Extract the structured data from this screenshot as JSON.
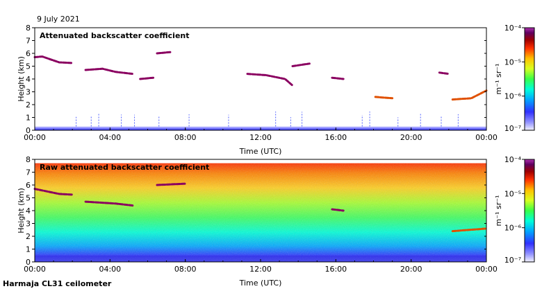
{
  "date_label": "9 July 2021",
  "footer_label": "Harmaja CL31 ceilometer",
  "colorbar_unit_text": "m⁻¹ sr⁻¹",
  "colors": {
    "cb_stops": [
      "#f2f2ff",
      "#9090ff",
      "#3030ff",
      "#00a8ff",
      "#00ffd8",
      "#38ff48",
      "#d8ff20",
      "#ffc000",
      "#ff3000",
      "#a00000",
      "#600060",
      "#b030b0"
    ]
  },
  "chart_data": [
    {
      "type": "heatmap",
      "title": "Attenuated backscatter coefficient",
      "xlabel": "Time (UTC)",
      "ylabel": "Height (km)",
      "xlim": [
        0,
        24
      ],
      "ylim": [
        0,
        8
      ],
      "x_tick_labels": [
        "00:00",
        "04:00",
        "08:00",
        "12:00",
        "16:00",
        "20:00",
        "00:00"
      ],
      "y_tick_labels": [
        "0",
        "1",
        "2",
        "3",
        "4",
        "5",
        "6",
        "7",
        "8"
      ],
      "colorbar": {
        "scale": "log",
        "min_label": "10⁻⁷",
        "max_label": "10⁻⁴",
        "tick_labels": [
          "10⁻⁴",
          "10⁻⁵",
          "10⁻⁶",
          "10⁻⁷"
        ]
      },
      "features": [
        {
          "name": "boundary layer",
          "type": "band",
          "t_range": [
            0,
            24
          ],
          "h_range": [
            0,
            0.3
          ],
          "level": "low"
        },
        {
          "name": "aerosol layer 00-02 UTC",
          "points": [
            [
              0,
              5.7
            ],
            [
              0.4,
              5.75
            ],
            [
              1.3,
              5.3
            ],
            [
              2.0,
              5.25
            ]
          ],
          "level": "high"
        },
        {
          "name": "aerosol layer 03-05 UTC",
          "points": [
            [
              2.7,
              4.7
            ],
            [
              3.6,
              4.8
            ],
            [
              4.3,
              4.55
            ],
            [
              5.2,
              4.4
            ]
          ],
          "level": "high"
        },
        {
          "name": "aerosol layer 05-06 UTC",
          "points": [
            [
              5.6,
              4.0
            ],
            [
              6.3,
              4.1
            ]
          ],
          "level": "high"
        },
        {
          "name": "aerosol layer 06-07 UTC",
          "points": [
            [
              6.5,
              6.0
            ],
            [
              7.2,
              6.1
            ]
          ],
          "level": "high"
        },
        {
          "name": "aerosol layer 11-13 UTC",
          "points": [
            [
              11.3,
              4.4
            ],
            [
              12.3,
              4.3
            ],
            [
              13.3,
              4.0
            ],
            [
              13.7,
              3.5
            ]
          ],
          "level": "high"
        },
        {
          "name": "aerosol layer 14 UTC",
          "points": [
            [
              13.7,
              5.0
            ],
            [
              14.6,
              5.2
            ]
          ],
          "level": "high"
        },
        {
          "name": "aerosol layer 16 UTC",
          "points": [
            [
              15.8,
              4.1
            ],
            [
              16.4,
              4.0
            ]
          ],
          "level": "high"
        },
        {
          "name": "aerosol layer 18 UTC",
          "points": [
            [
              18.1,
              2.6
            ],
            [
              19.0,
              2.5
            ]
          ],
          "level": "mid"
        },
        {
          "name": "aerosol layer 21-22 UTC",
          "points": [
            [
              21.5,
              4.5
            ],
            [
              22.0,
              4.4
            ]
          ],
          "level": "high"
        },
        {
          "name": "aerosol layer 22-24 UTC",
          "points": [
            [
              22.2,
              2.4
            ],
            [
              23.2,
              2.5
            ],
            [
              24,
              3.1
            ]
          ],
          "level": "mid"
        }
      ]
    },
    {
      "type": "heatmap",
      "title": "Raw attenuated backscatter coefficient",
      "xlabel": "Time (UTC)",
      "ylabel": "Height (km)",
      "xlim": [
        0,
        24
      ],
      "ylim": [
        0,
        8
      ],
      "x_tick_labels": [
        "00:00",
        "04:00",
        "08:00",
        "12:00",
        "16:00",
        "20:00",
        "00:00"
      ],
      "y_tick_labels": [
        "0",
        "1",
        "2",
        "3",
        "4",
        "5",
        "6",
        "7",
        "8"
      ],
      "colorbar": {
        "scale": "log",
        "min_label": "10⁻⁷",
        "max_label": "10⁻⁴",
        "tick_labels": [
          "10⁻⁴",
          "10⁻⁵",
          "10⁻⁶",
          "10⁻⁷"
        ]
      },
      "features": [
        {
          "name": "noise field",
          "type": "band",
          "t_range": [
            0,
            24
          ],
          "h_range": [
            0,
            7.7
          ],
          "level": "increasing with height"
        },
        {
          "name": "aerosol layer 00-02 UTC",
          "points": [
            [
              0,
              5.7
            ],
            [
              1.3,
              5.3
            ],
            [
              2.0,
              5.25
            ]
          ],
          "level": "high"
        },
        {
          "name": "aerosol layer 03-05 UTC",
          "points": [
            [
              2.7,
              4.7
            ],
            [
              4.3,
              4.55
            ],
            [
              5.2,
              4.4
            ]
          ],
          "level": "high"
        },
        {
          "name": "aerosol layer 06-08 UTC",
          "points": [
            [
              6.5,
              6.0
            ],
            [
              8.0,
              6.1
            ]
          ],
          "level": "high"
        },
        {
          "name": "aerosol layer 16 UTC",
          "points": [
            [
              15.8,
              4.1
            ],
            [
              16.4,
              4.0
            ]
          ],
          "level": "high"
        },
        {
          "name": "aerosol layer 22-24 UTC",
          "points": [
            [
              22.2,
              2.4
            ],
            [
              24,
              2.6
            ]
          ],
          "level": "mid"
        }
      ]
    }
  ]
}
